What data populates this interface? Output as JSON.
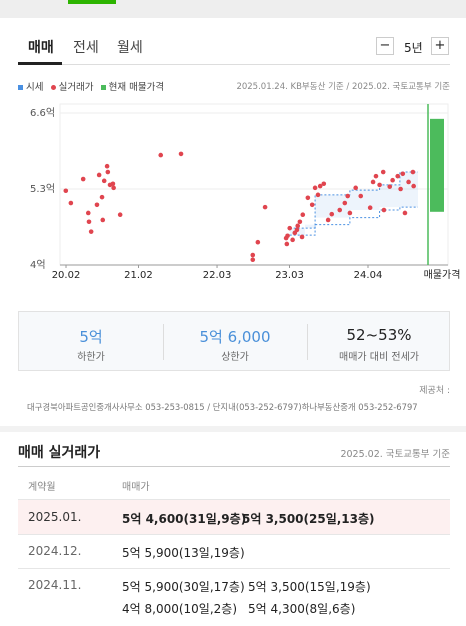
{
  "tabs": [
    "매매",
    "전세",
    "월세"
  ],
  "period": {
    "minus": "−",
    "label": "5년",
    "plus": "+"
  },
  "legend": {
    "quote": "시세",
    "trade": "실거래가",
    "listing": "현재 매물가격"
  },
  "source": "2025.01.24. KB부동산 기준 / 2025.02. 국토교통부 기준",
  "chart_data": {
    "type": "scatter",
    "xlim": [
      2020.0,
      2024.94
    ],
    "ylim": [
      4,
      6.6
    ],
    "xticks": [
      {
        "value": 2020.083,
        "label": "20.02"
      },
      {
        "value": 2021.083,
        "label": "21.02"
      },
      {
        "value": 2022.167,
        "label": "22.03"
      },
      {
        "value": 2023.167,
        "label": "23.03"
      },
      {
        "value": 2024.25,
        "label": "24.04"
      }
    ],
    "yticks": [
      {
        "value": 4,
        "label": "4억"
      },
      {
        "value": 5.3,
        "label": "5.3억"
      },
      {
        "value": 6.6,
        "label": "6.6억"
      }
    ],
    "series": [
      {
        "name": "실거래가",
        "color": "#e0454f",
        "x": [
          2020.08,
          2020.15,
          2020.32,
          2020.39,
          2020.4,
          2020.43,
          2020.51,
          2020.54,
          2020.58,
          2020.59,
          2020.61,
          2020.65,
          2020.66,
          2020.69,
          2020.73,
          2020.74,
          2020.83,
          2021.39,
          2021.67,
          2022.66,
          2022.66,
          2022.73,
          2022.83,
          2023.12,
          2023.13,
          2023.14,
          2023.17,
          2023.21,
          2023.24,
          2023.27,
          2023.28,
          2023.31,
          2023.34,
          2023.35,
          2023.42,
          2023.48,
          2023.52,
          2023.56,
          2023.59,
          2023.64,
          2023.7,
          2023.75,
          2023.86,
          2023.93,
          2023.97,
          2024.0,
          2024.08,
          2024.15,
          2024.28,
          2024.32,
          2024.36,
          2024.41,
          2024.46,
          2024.47,
          2024.55,
          2024.59,
          2024.66,
          2024.7,
          2024.73,
          2024.76,
          2024.81,
          2024.87,
          2024.88
        ],
        "values": [
          5.27,
          5.06,
          5.47,
          4.89,
          4.74,
          4.57,
          5.03,
          5.54,
          5.16,
          4.77,
          5.44,
          5.69,
          5.59,
          5.37,
          5.39,
          5.32,
          4.86,
          5.88,
          5.9,
          4.17,
          4.09,
          4.39,
          4.99,
          4.46,
          4.36,
          4.5,
          4.63,
          4.43,
          4.55,
          4.6,
          4.67,
          4.74,
          4.48,
          4.86,
          5.15,
          5.03,
          5.32,
          5.2,
          5.35,
          5.39,
          4.77,
          4.87,
          4.94,
          5.06,
          5.18,
          4.89,
          5.32,
          5.18,
          4.98,
          5.42,
          5.52,
          5.37,
          5.59,
          4.94,
          5.34,
          5.45,
          5.52,
          5.3,
          5.56,
          4.89,
          5.42,
          5.59,
          5.35
        ]
      }
    ],
    "band": {
      "name": "시세",
      "color": "#4a90e2",
      "x": [
        2023.17,
        2023.38,
        2023.52,
        2024.0,
        2024.41,
        2024.69,
        2024.94
      ],
      "upper": [
        4.63,
        4.63,
        5.2,
        5.28,
        5.37,
        5.59,
        5.59
      ],
      "lower": [
        4.51,
        4.51,
        4.69,
        4.81,
        4.94,
        4.99,
        4.99
      ]
    },
    "listing": {
      "label": "매물가격",
      "color": "#4cbb5c",
      "low": 4.91,
      "high": 6.5
    }
  },
  "summary": [
    {
      "value": "5억",
      "label": "하한가"
    },
    {
      "value": "5억 6,000",
      "label": "상한가"
    },
    {
      "value": "52~53%",
      "label": "매매가 대비 전세가"
    }
  ],
  "provider": {
    "label": "제공처 :",
    "text": "대구경북아파트공인중개사사무소 053-253-0815 / 단지내(053-252-6797)하나부동산중개 053-252-6797"
  },
  "trades": {
    "title": "매매 실거래가",
    "source": "2025.02. 국토교통부 기준",
    "headers": [
      "계약월",
      "매매가"
    ],
    "rows": [
      {
        "month": "2025.01.",
        "prices": [
          "5억 4,600(31일,9층)",
          "5억 3,500(25일,13층)"
        ]
      },
      {
        "month": "2024.12.",
        "prices": [
          "5억 5,900(13일,19층)"
        ]
      },
      {
        "month": "2024.11.",
        "prices": [
          "5억 5,900(30일,17층)",
          "5억 3,500(15일,19층)",
          "4억 8,000(10일,2층)",
          "5억 4,300(8일,6층)"
        ]
      }
    ]
  }
}
